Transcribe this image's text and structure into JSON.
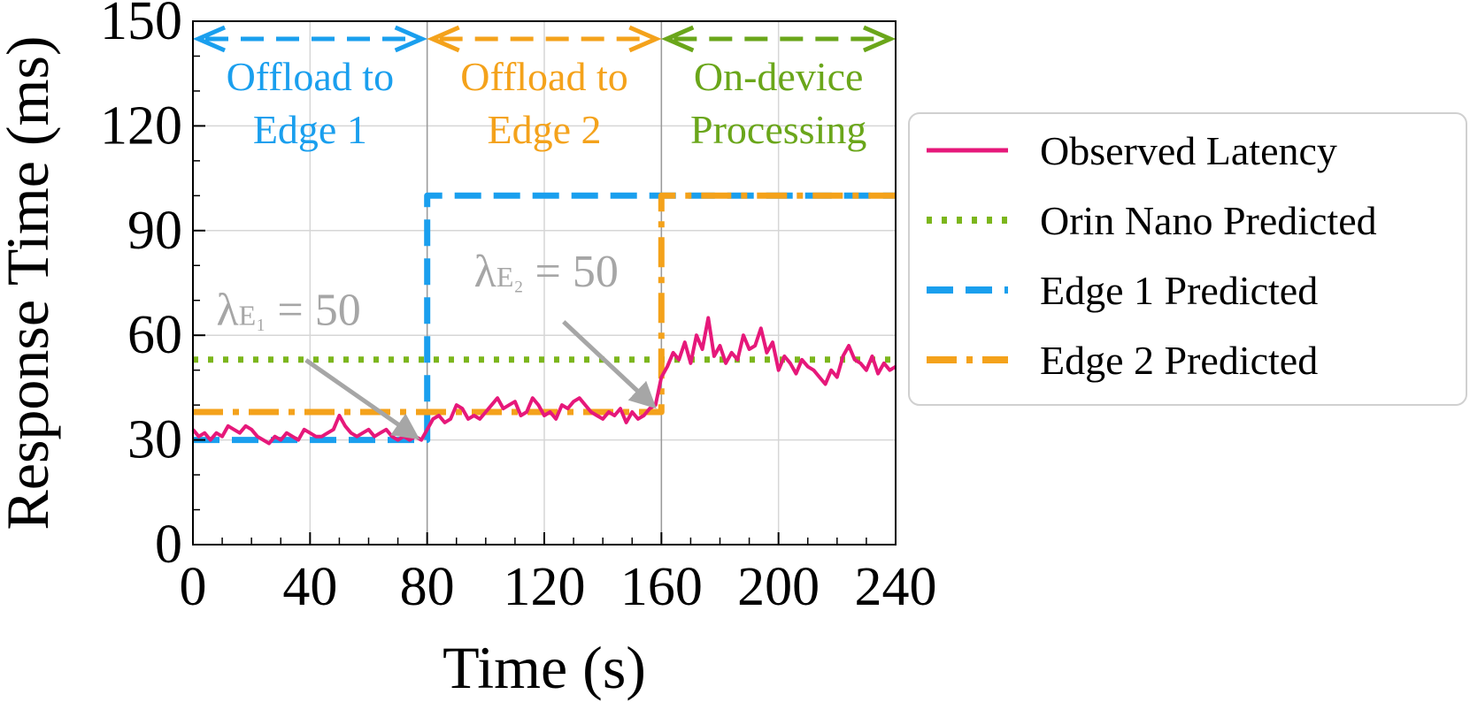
{
  "chart_data": {
    "type": "line",
    "xlabel": "Time (s)",
    "ylabel": "Response Time (ms)",
    "xlim": [
      0,
      240
    ],
    "ylim": [
      0,
      150
    ],
    "xticks": [
      "0",
      "40",
      "80",
      "120",
      "160",
      "200",
      "240"
    ],
    "yticks": [
      "0",
      "30",
      "60",
      "90",
      "120",
      "150"
    ],
    "grid": true,
    "legend_position": "right",
    "series": [
      {
        "name": "Observed Latency",
        "color": "#e6187a",
        "style": "solid",
        "x": [
          0,
          2,
          4,
          6,
          8,
          10,
          12,
          14,
          16,
          18,
          20,
          22,
          24,
          26,
          28,
          30,
          32,
          34,
          36,
          38,
          40,
          42,
          44,
          46,
          48,
          50,
          52,
          54,
          56,
          58,
          60,
          62,
          64,
          66,
          68,
          70,
          72,
          74,
          76,
          78,
          80,
          82,
          84,
          86,
          88,
          90,
          92,
          94,
          96,
          98,
          100,
          102,
          104,
          106,
          108,
          110,
          112,
          114,
          116,
          118,
          120,
          122,
          124,
          126,
          128,
          130,
          132,
          134,
          136,
          138,
          140,
          142,
          144,
          146,
          148,
          150,
          152,
          154,
          156,
          158,
          160,
          162,
          164,
          166,
          168,
          170,
          172,
          174,
          176,
          178,
          180,
          182,
          184,
          186,
          188,
          190,
          192,
          194,
          196,
          198,
          200,
          202,
          204,
          206,
          208,
          210,
          212,
          214,
          216,
          218,
          220,
          222,
          224,
          226,
          228,
          230,
          232,
          234,
          236,
          238,
          240
        ],
        "y": [
          33,
          31,
          32,
          30,
          32,
          31,
          34,
          33,
          32,
          34,
          33,
          31,
          30,
          29,
          31,
          30,
          32,
          31,
          30,
          33,
          32,
          31,
          31,
          32,
          33,
          37,
          34,
          32,
          31,
          32,
          33,
          31,
          32,
          33,
          31,
          30,
          31,
          30,
          31,
          30,
          33,
          36,
          37,
          35,
          36,
          40,
          39,
          36,
          37,
          36,
          38,
          40,
          42,
          39,
          40,
          41,
          37,
          38,
          42,
          40,
          37,
          38,
          36,
          40,
          39,
          41,
          42,
          40,
          38,
          37,
          36,
          38,
          37,
          39,
          35,
          38,
          36,
          37,
          39,
          40,
          48,
          51,
          55,
          53,
          58,
          52,
          60,
          56,
          65,
          54,
          57,
          52,
          55,
          53,
          60,
          56,
          57,
          62,
          55,
          58,
          50,
          54,
          52,
          49,
          53,
          51,
          50,
          48,
          46,
          50,
          48,
          54,
          57,
          53,
          52,
          50,
          54,
          49,
          52,
          50,
          51
        ]
      },
      {
        "name": "Orin Nano Predicted",
        "color": "#7cb61c",
        "style": "dotted",
        "x": [
          0,
          240
        ],
        "y": [
          53,
          53
        ]
      },
      {
        "name": "Edge 1 Predicted",
        "color": "#1a9fee",
        "style": "dashed",
        "x": [
          0,
          80,
          80,
          240
        ],
        "y": [
          30,
          30,
          100,
          100
        ]
      },
      {
        "name": "Edge 2 Predicted",
        "color": "#f4a21b",
        "style": "dashdot",
        "x": [
          0,
          160,
          160,
          240
        ],
        "y": [
          38,
          38,
          100,
          100
        ]
      }
    ],
    "regions": [
      {
        "x0": 0,
        "x1": 80,
        "label_line1": "Offload to",
        "label_line2": "Edge 1",
        "color": "#1a9fee"
      },
      {
        "x0": 80,
        "x1": 160,
        "label_line1": "Offload to",
        "label_line2": "Edge 2",
        "color": "#f4a21b"
      },
      {
        "x0": 160,
        "x1": 240,
        "label_line1": "On-device",
        "label_line2": "Processing",
        "color": "#6aa61a"
      }
    ],
    "annotations": [
      {
        "symbol": "λ",
        "subscript": "E₁",
        "suffix": " = 50",
        "x_point": 76,
        "y_point": 31,
        "x_text": 8,
        "y_text": 63
      },
      {
        "symbol": "λ",
        "subscript": "E₂",
        "suffix": " = 50",
        "x_point": 157,
        "y_point": 40,
        "x_text": 96,
        "y_text": 74
      }
    ]
  }
}
